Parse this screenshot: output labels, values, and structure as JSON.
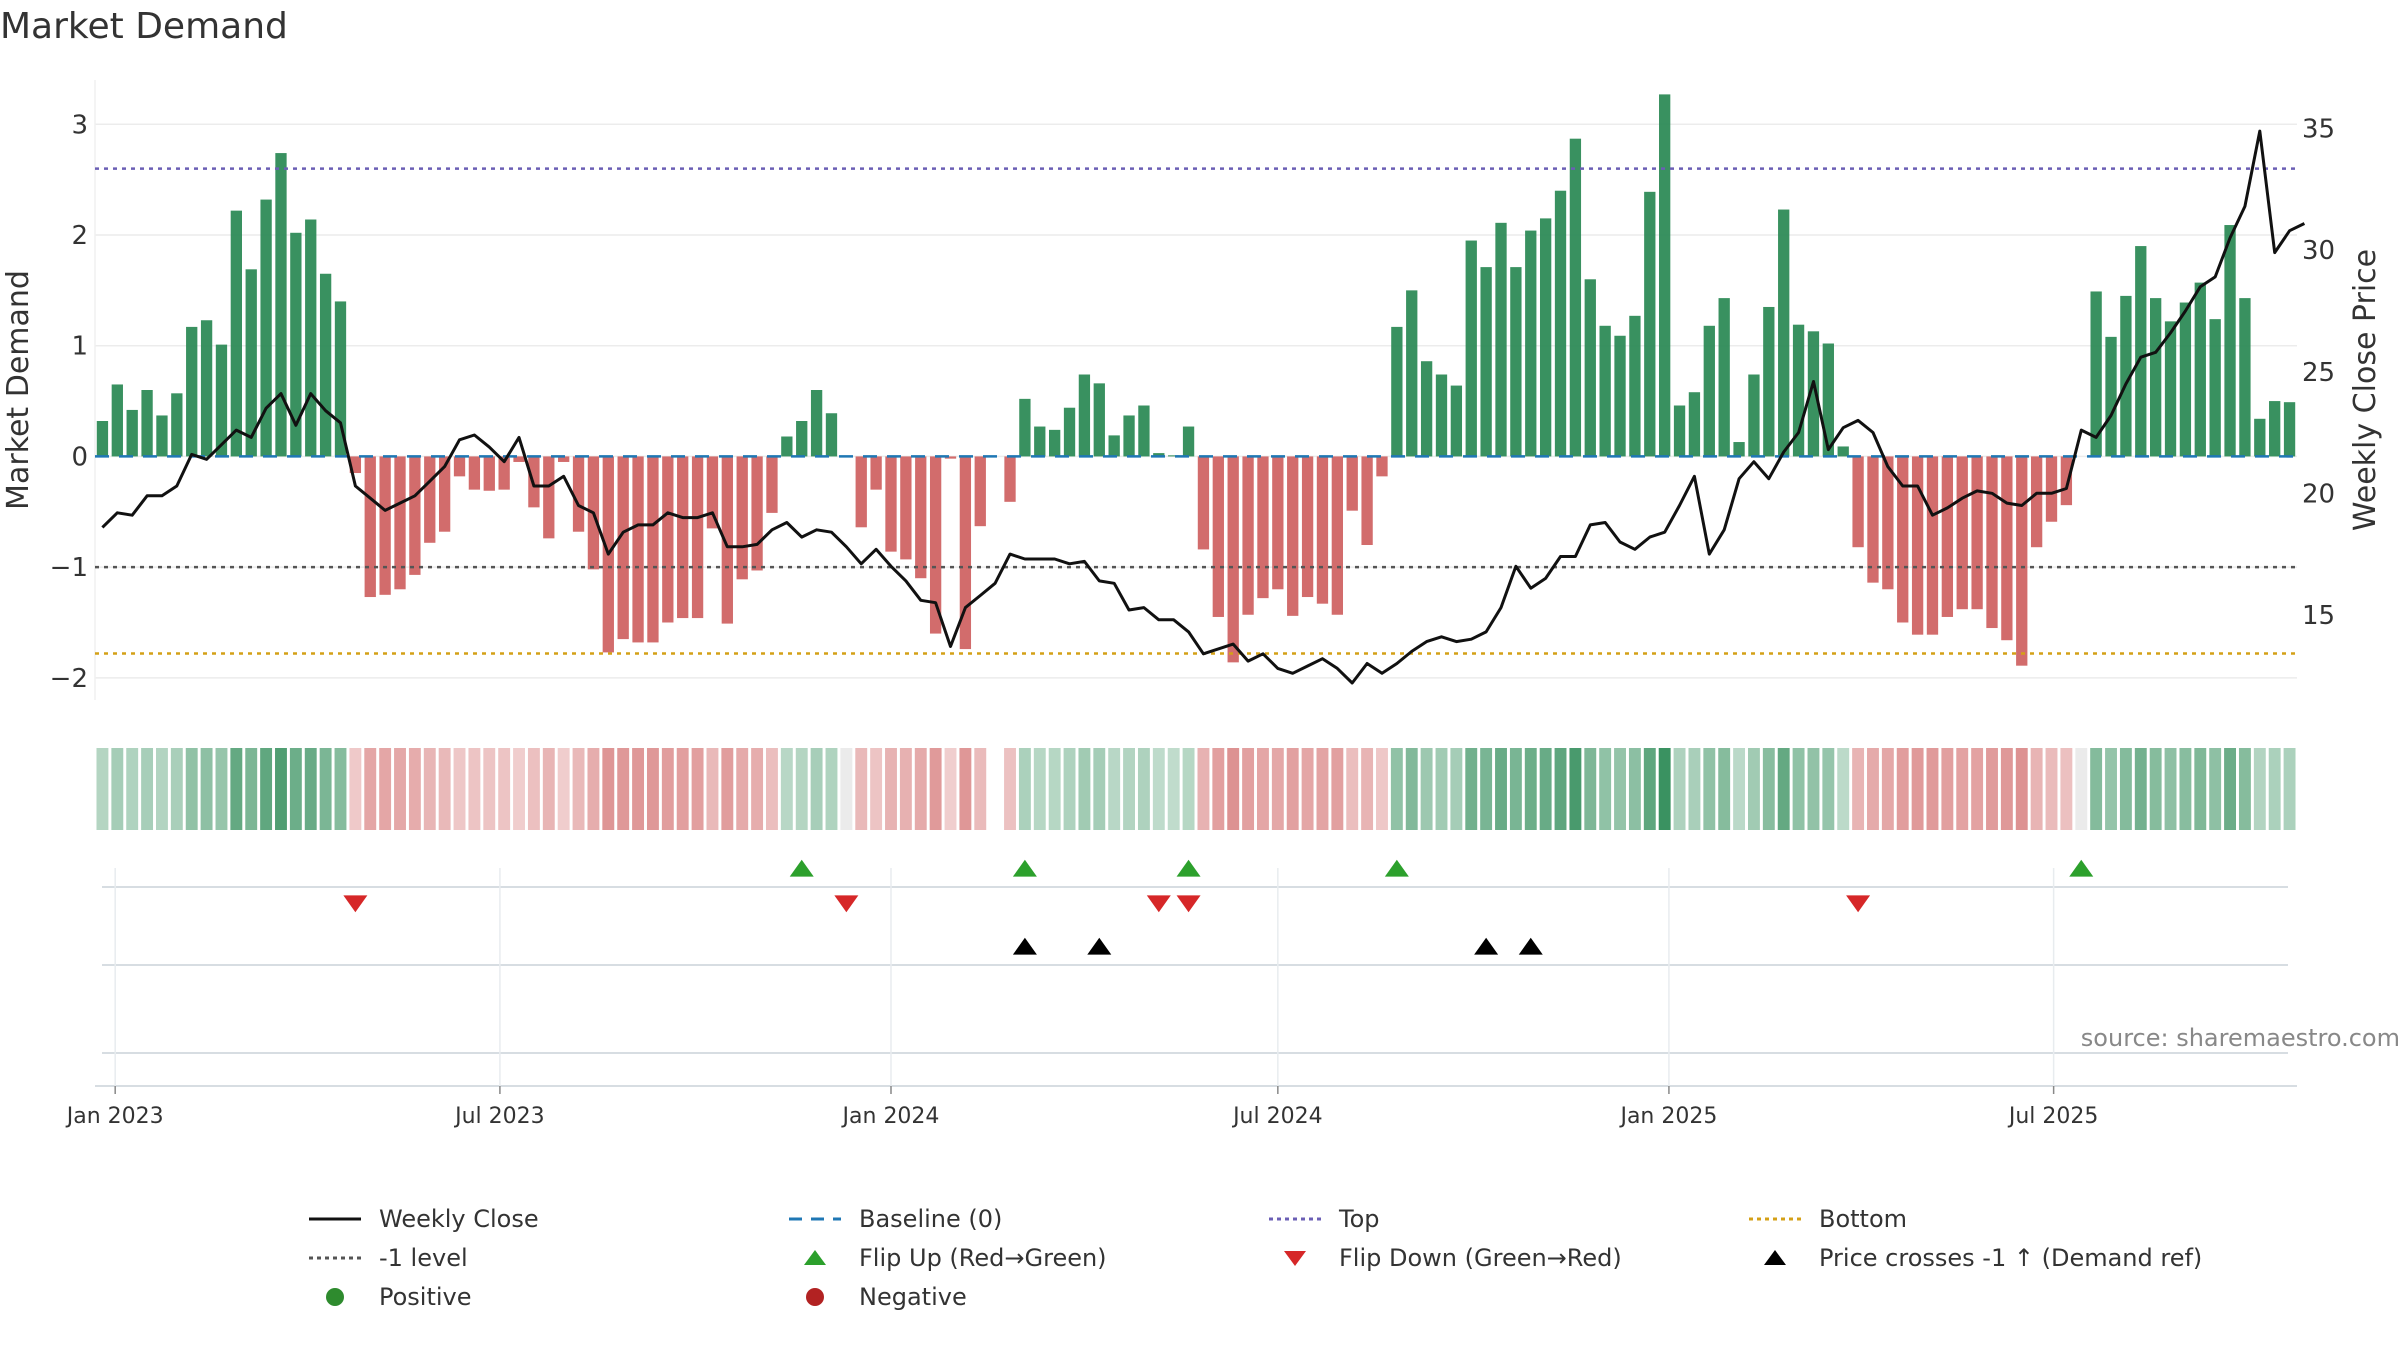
{
  "title": "Market Demand",
  "source": "source: sharemaestro.com",
  "colors": {
    "positive": "#2e8b57",
    "negative": "#cd5c5c",
    "close": "#111111",
    "baseline": "#1f77b4",
    "top": "#6b5fb5",
    "minus_one": "#555555",
    "bottom": "#d4a017",
    "flip_up": "#2ca02c",
    "flip_down": "#d62728",
    "cross": "#000000"
  },
  "chart_data": {
    "type": "bar",
    "title": "Market Demand",
    "ylabel_left": "Market Demand",
    "ylabel_right": "Weekly Close Price",
    "ylim_left": [
      -2.2,
      3.4
    ],
    "ylim_right": [
      11.5,
      37.0
    ],
    "yticks_left": [
      -2,
      -1,
      0,
      1,
      2,
      3
    ],
    "yticks_left_labels": [
      "−2",
      "−1",
      "0",
      "1",
      "2",
      "3"
    ],
    "yticks_right": [
      15,
      20,
      25,
      30,
      35
    ],
    "x_start": "2022-12-26",
    "x_step_days": 7,
    "x_end": "2025-09-08",
    "x_ticks": [
      {
        "label": "Jan 2023",
        "date": "2023-01-01"
      },
      {
        "label": "Jul 2023",
        "date": "2023-07-01"
      },
      {
        "label": "Jan 2024",
        "date": "2024-01-01"
      },
      {
        "label": "Jul 2024",
        "date": "2024-07-01"
      },
      {
        "label": "Jan 2025",
        "date": "2025-01-01"
      },
      {
        "label": "Jul 2025",
        "date": "2025-07-01"
      }
    ],
    "reference_lines": {
      "top": 2.6,
      "minus_one": -1.0,
      "bottom": -1.78,
      "baseline": 0
    },
    "demand": [
      0.32,
      0.65,
      0.42,
      0.6,
      0.37,
      0.57,
      1.17,
      1.23,
      1.01,
      2.22,
      1.69,
      2.32,
      2.74,
      2.02,
      2.14,
      1.65,
      1.4,
      -0.15,
      -1.27,
      -1.25,
      -1.2,
      -1.07,
      -0.78,
      -0.68,
      -0.18,
      -0.3,
      -0.31,
      -0.3,
      -0.05,
      -0.46,
      -0.74,
      -0.05,
      -0.68,
      -1.02,
      -1.77,
      -1.65,
      -1.68,
      -1.68,
      -1.5,
      -1.46,
      -1.46,
      -0.65,
      -1.51,
      -1.11,
      -1.03,
      -0.51,
      0.18,
      0.32,
      0.6,
      0.39,
      0,
      -0.64,
      -0.3,
      -0.86,
      -0.93,
      -1.1,
      -1.6,
      -0.02,
      -1.74,
      -0.63,
      0,
      -0.41,
      0.52,
      0.27,
      0.24,
      0.44,
      0.74,
      0.66,
      0.19,
      0.37,
      0.46,
      0.03,
      0.01,
      0.27,
      -0.84,
      -1.45,
      -1.86,
      -1.43,
      -1.28,
      -1.2,
      -1.44,
      -1.27,
      -1.33,
      -1.43,
      -0.49,
      -0.8,
      -0.18,
      1.17,
      1.5,
      0.86,
      0.74,
      0.64,
      1.95,
      1.71,
      2.11,
      1.71,
      2.04,
      2.15,
      2.4,
      2.87,
      1.6,
      1.18,
      1.09,
      1.27,
      2.39,
      3.27,
      0.46,
      0.58,
      1.18,
      1.43,
      0.13,
      0.74,
      1.35,
      2.23,
      1.19,
      1.13,
      1.02,
      0.09,
      -0.82,
      -1.14,
      -1.2,
      -1.5,
      -1.61,
      -1.61,
      -1.45,
      -1.38,
      -1.38,
      -1.55,
      -1.66,
      -1.89,
      -0.82,
      -0.59,
      -0.44,
      0,
      1.49,
      1.08,
      1.45,
      1.9,
      1.43,
      1.22,
      1.39,
      1.57,
      1.24,
      2.09,
      1.43,
      0.34,
      0.5,
      0.49
    ],
    "weekly_close": [
      18.6,
      19.2,
      19.1,
      19.9,
      19.9,
      20.3,
      21.6,
      21.4,
      22.0,
      22.6,
      22.3,
      23.5,
      24.1,
      22.8,
      24.1,
      23.4,
      22.9,
      20.3,
      19.8,
      19.3,
      19.6,
      19.9,
      20.5,
      21.1,
      22.2,
      22.4,
      21.9,
      21.3,
      22.3,
      20.3,
      20.3,
      20.7,
      19.5,
      19.2,
      17.5,
      18.4,
      18.7,
      18.7,
      19.2,
      19.0,
      19.0,
      19.2,
      17.8,
      17.8,
      17.9,
      18.5,
      18.8,
      18.2,
      18.5,
      18.4,
      17.8,
      17.1,
      17.7,
      17.0,
      16.4,
      15.6,
      15.5,
      13.7,
      15.3,
      15.8,
      16.3,
      17.5,
      17.3,
      17.3,
      17.3,
      17.1,
      17.2,
      16.4,
      16.3,
      15.2,
      15.3,
      14.8,
      14.8,
      14.3,
      13.4,
      13.6,
      13.8,
      13.1,
      13.4,
      12.8,
      12.6,
      12.9,
      13.2,
      12.8,
      12.2,
      13.0,
      12.6,
      13.0,
      13.5,
      13.9,
      14.1,
      13.9,
      14.0,
      14.3,
      15.3,
      17.0,
      16.1,
      16.5,
      17.4,
      17.4,
      18.7,
      18.8,
      18.0,
      17.7,
      18.2,
      18.4,
      19.5,
      20.7,
      17.5,
      18.5,
      20.6,
      21.3,
      20.6,
      21.7,
      22.5,
      24.6,
      21.8,
      22.7,
      23.0,
      22.5,
      21.1,
      20.3,
      20.3,
      19.1,
      19.4,
      19.8,
      20.1,
      20.0,
      19.6,
      19.5,
      20.0,
      20.0,
      20.2,
      22.6,
      22.3,
      23.2,
      24.5,
      25.6,
      25.8,
      26.6,
      27.5,
      28.5,
      28.9,
      30.5,
      31.8,
      34.9,
      29.9,
      30.8,
      31.1
    ],
    "flip_up_weeks": [
      47,
      62,
      73,
      87,
      133
    ],
    "flip_down_weeks": [
      17,
      50,
      71,
      73,
      118
    ],
    "price_cross_weeks": [
      62,
      67,
      93,
      96
    ],
    "strip_missing_weeks": [
      60
    ]
  },
  "legend": [
    {
      "key": "close",
      "label": "Weekly Close",
      "symbol": "solid-line"
    },
    {
      "key": "baseline",
      "label": "Baseline (0)",
      "symbol": "dash-line"
    },
    {
      "key": "top",
      "label": "Top",
      "symbol": "dot-line"
    },
    {
      "key": "bottom",
      "label": "Bottom",
      "symbol": "dot-line"
    },
    {
      "key": "minus_one",
      "label": "-1 level",
      "symbol": "dot-line"
    },
    {
      "key": "flip_up",
      "label": "Flip Up (Red→Green)",
      "symbol": "triangle-up"
    },
    {
      "key": "flip_down",
      "label": "Flip Down (Green→Red)",
      "symbol": "triangle-down"
    },
    {
      "key": "cross",
      "label": "Price crosses -1 ↑ (Demand ref)",
      "symbol": "triangle-up"
    },
    {
      "key": "positive",
      "label": "Positive",
      "symbol": "circle"
    },
    {
      "key": "negative",
      "label": "Negative",
      "symbol": "circle"
    }
  ]
}
